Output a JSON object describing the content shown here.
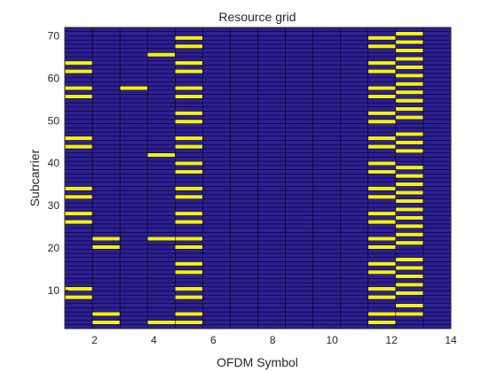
{
  "chart_data": {
    "type": "heatmap",
    "title": "Resource grid",
    "xlabel": "OFDM Symbol",
    "ylabel": "Subcarrier",
    "xlim": [
      1,
      14
    ],
    "ylim": [
      1,
      72
    ],
    "xticks": [
      2,
      4,
      6,
      8,
      10,
      12,
      14
    ],
    "yticks": [
      10,
      20,
      30,
      40,
      50,
      60,
      70
    ],
    "grid": false,
    "colors": {
      "empty": "#2d1f96",
      "allocated": "#f4f113",
      "cell_edge": "#000000",
      "axis": "#262626"
    },
    "symbols": [
      1,
      2,
      3,
      4,
      5,
      6,
      7,
      8,
      9,
      10,
      11,
      12,
      13,
      14
    ],
    "subcarriers": 72,
    "allocated": [
      {
        "symbol": 1,
        "subcarriers": [
          8,
          10,
          26,
          28,
          32,
          34,
          44,
          46,
          56,
          58,
          62,
          64
        ]
      },
      {
        "symbol": 2,
        "subcarriers": [
          2,
          4,
          20,
          22
        ]
      },
      {
        "symbol": 3,
        "subcarriers": [
          58
        ]
      },
      {
        "symbol": 4,
        "subcarriers": [
          2,
          22,
          42,
          66
        ]
      },
      {
        "symbol": 5,
        "subcarriers": [
          2,
          4,
          8,
          10,
          14,
          16,
          20,
          22,
          26,
          28,
          32,
          34,
          38,
          40,
          44,
          46,
          50,
          52,
          56,
          58,
          62,
          64,
          68,
          70
        ]
      },
      {
        "symbol": 6,
        "subcarriers": []
      },
      {
        "symbol": 7,
        "subcarriers": []
      },
      {
        "symbol": 8,
        "subcarriers": []
      },
      {
        "symbol": 9,
        "subcarriers": []
      },
      {
        "symbol": 10,
        "subcarriers": []
      },
      {
        "symbol": 11,
        "subcarriers": []
      },
      {
        "symbol": 12,
        "subcarriers": [
          2,
          4,
          8,
          10,
          14,
          16,
          20,
          22,
          26,
          28,
          32,
          34,
          38,
          40,
          44,
          46,
          50,
          52,
          56,
          58,
          62,
          64,
          68,
          70
        ]
      },
      {
        "symbol": 13,
        "subcarriers": [
          4,
          6,
          9,
          11,
          13,
          15,
          17,
          21,
          23,
          25,
          27,
          29,
          31,
          33,
          35,
          37,
          39,
          43,
          45,
          47,
          51,
          53,
          55,
          57,
          59,
          61,
          63,
          65,
          67,
          69,
          71
        ]
      },
      {
        "symbol": 14,
        "subcarriers": []
      }
    ]
  }
}
